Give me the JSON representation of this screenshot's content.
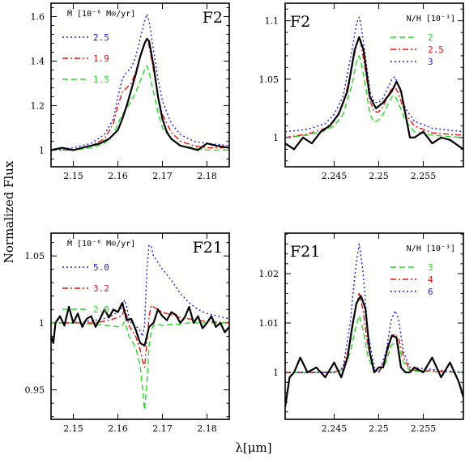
{
  "figure": {
    "ylabel": "Normalized Flux",
    "xlabel": "λ[μm]"
  },
  "chart_data": [
    {
      "type": "line",
      "title": "F2",
      "legend_title": "Ṁ [10⁻⁶ M⊙/yr]",
      "legend_position": "top-left",
      "xlim": [
        2.145,
        2.185
      ],
      "ylim": [
        0.925,
        1.66
      ],
      "xticks": [
        2.15,
        2.16,
        2.17,
        2.18
      ],
      "yticks": [
        1,
        1.2,
        1.4,
        1.6
      ],
      "xtick_labels": [
        "2.15",
        "2.16",
        "2.17",
        "2.18"
      ],
      "ytick_labels": [
        "1",
        "1.2",
        "1.4",
        "1.6"
      ],
      "series": [
        {
          "name": "",
          "color": "#000000",
          "dash": "",
          "width": 2.2,
          "x": [
            2.145,
            2.1475,
            2.15,
            2.152,
            2.154,
            2.156,
            2.158,
            2.16,
            2.161,
            2.162,
            2.163,
            2.164,
            2.165,
            2.166,
            2.1665,
            2.167,
            2.168,
            2.169,
            2.17,
            2.171,
            2.172,
            2.174,
            2.176,
            2.178,
            2.18,
            2.182,
            2.185
          ],
          "y": [
            1.0,
            1.01,
            1.0,
            1.01,
            1.02,
            1.03,
            1.05,
            1.09,
            1.14,
            1.2,
            1.27,
            1.34,
            1.42,
            1.48,
            1.5,
            1.49,
            1.38,
            1.24,
            1.14,
            1.08,
            1.05,
            1.02,
            1.01,
            1.0,
            1.03,
            1.02,
            1.01
          ]
        },
        {
          "name": "2.5",
          "color": "#1a1aff",
          "dash": "2,3",
          "width": 1.4,
          "x": [
            2.145,
            2.15,
            2.154,
            2.157,
            2.159,
            2.16,
            2.161,
            2.162,
            2.163,
            2.164,
            2.165,
            2.166,
            2.1665,
            2.167,
            2.168,
            2.169,
            2.17,
            2.172,
            2.174,
            2.177,
            2.18,
            2.185
          ],
          "y": [
            1.0,
            1.01,
            1.03,
            1.07,
            1.14,
            1.24,
            1.32,
            1.35,
            1.37,
            1.42,
            1.5,
            1.58,
            1.61,
            1.58,
            1.45,
            1.32,
            1.22,
            1.12,
            1.07,
            1.04,
            1.03,
            1.02
          ]
        },
        {
          "name": "1.9",
          "color": "#ee1111",
          "dash": "7,3,2,3",
          "width": 1.4,
          "x": [
            2.145,
            2.15,
            2.154,
            2.157,
            2.159,
            2.16,
            2.161,
            2.162,
            2.163,
            2.164,
            2.165,
            2.166,
            2.1665,
            2.167,
            2.168,
            2.169,
            2.17,
            2.172,
            2.174,
            2.177,
            2.18,
            2.185
          ],
          "y": [
            1.0,
            1.0,
            1.02,
            1.05,
            1.12,
            1.2,
            1.26,
            1.28,
            1.3,
            1.35,
            1.42,
            1.48,
            1.5,
            1.47,
            1.36,
            1.24,
            1.16,
            1.08,
            1.04,
            1.02,
            1.01,
            1.01
          ]
        },
        {
          "name": "1.5",
          "color": "#22dd22",
          "dash": "7,4",
          "width": 1.4,
          "x": [
            2.145,
            2.15,
            2.154,
            2.157,
            2.159,
            2.16,
            2.161,
            2.162,
            2.163,
            2.164,
            2.165,
            2.166,
            2.1665,
            2.167,
            2.168,
            2.169,
            2.17,
            2.172,
            2.174,
            2.177,
            2.18,
            2.185
          ],
          "y": [
            1.0,
            1.0,
            1.01,
            1.03,
            1.07,
            1.12,
            1.16,
            1.19,
            1.22,
            1.26,
            1.31,
            1.36,
            1.38,
            1.35,
            1.26,
            1.17,
            1.1,
            1.05,
            1.02,
            1.01,
            1.0,
            1.0
          ]
        }
      ]
    },
    {
      "type": "line",
      "title": "F2",
      "legend_title": "N/H [10⁻³]",
      "legend_position": "top-right",
      "xlim": [
        2.2395,
        2.2595
      ],
      "ylim": [
        0.975,
        1.115
      ],
      "xticks": [
        2.245,
        2.25,
        2.255
      ],
      "yticks": [
        1,
        1.05,
        1.1
      ],
      "xtick_labels": [
        "2.245",
        "2.25",
        "2.255"
      ],
      "ytick_labels": [
        "1",
        "1.05",
        "1.1"
      ],
      "series": [
        {
          "name": "",
          "color": "#000000",
          "dash": "",
          "width": 2.2,
          "x": [
            2.2395,
            2.2405,
            2.2415,
            2.2425,
            2.2435,
            2.2445,
            2.2455,
            2.2465,
            2.2473,
            2.2478,
            2.2483,
            2.249,
            2.2497,
            2.2505,
            2.2515,
            2.252,
            2.2525,
            2.253,
            2.2535,
            2.254,
            2.255,
            2.256,
            2.257,
            2.258,
            2.2595
          ],
          "y": [
            0.995,
            0.99,
            1.0,
            0.995,
            1.005,
            1.01,
            1.02,
            1.04,
            1.075,
            1.086,
            1.075,
            1.035,
            1.025,
            1.03,
            1.04,
            1.048,
            1.04,
            1.02,
            1.0,
            1.0,
            1.005,
            0.995,
            1.0,
            0.998,
            0.99
          ]
        },
        {
          "name": "2",
          "color": "#22dd22",
          "dash": "7,4",
          "width": 1.4,
          "x": [
            2.2395,
            2.242,
            2.244,
            2.245,
            2.246,
            2.247,
            2.2475,
            2.2478,
            2.248,
            2.2485,
            2.249,
            2.2495,
            2.25,
            2.2505,
            2.251,
            2.2515,
            2.2518,
            2.2522,
            2.253,
            2.254,
            2.256,
            2.2595
          ],
          "y": [
            1.0,
            1.002,
            1.006,
            1.01,
            1.02,
            1.045,
            1.065,
            1.07,
            1.065,
            1.045,
            1.02,
            1.013,
            1.015,
            1.02,
            1.028,
            1.035,
            1.036,
            1.03,
            1.014,
            1.005,
            1.002,
            1.0
          ]
        },
        {
          "name": "2.5",
          "color": "#ee1111",
          "dash": "7,3,2,3",
          "width": 1.4,
          "x": [
            2.2395,
            2.242,
            2.244,
            2.245,
            2.246,
            2.247,
            2.2475,
            2.2478,
            2.248,
            2.2485,
            2.249,
            2.2495,
            2.25,
            2.2505,
            2.251,
            2.2515,
            2.2518,
            2.2522,
            2.253,
            2.254,
            2.256,
            2.2595
          ],
          "y": [
            1.0,
            1.003,
            1.008,
            1.014,
            1.028,
            1.06,
            1.08,
            1.086,
            1.08,
            1.058,
            1.032,
            1.022,
            1.022,
            1.027,
            1.035,
            1.043,
            1.044,
            1.038,
            1.02,
            1.01,
            1.004,
            1.002
          ]
        },
        {
          "name": "3",
          "color": "#1a1aff",
          "dash": "2,3",
          "width": 1.4,
          "x": [
            2.2395,
            2.242,
            2.244,
            2.245,
            2.246,
            2.247,
            2.2475,
            2.2478,
            2.248,
            2.2485,
            2.249,
            2.2495,
            2.25,
            2.2505,
            2.251,
            2.2515,
            2.2518,
            2.2522,
            2.253,
            2.254,
            2.256,
            2.2595
          ],
          "y": [
            1.005,
            1.007,
            1.012,
            1.02,
            1.035,
            1.075,
            1.097,
            1.103,
            1.097,
            1.07,
            1.04,
            1.03,
            1.03,
            1.034,
            1.042,
            1.05,
            1.052,
            1.045,
            1.025,
            1.014,
            1.008,
            1.005
          ]
        }
      ]
    },
    {
      "type": "line",
      "title": "F21",
      "legend_title": "Ṁ [10⁻⁶ M⊙/yr]",
      "legend_position": "top-left",
      "xlim": [
        2.145,
        2.185
      ],
      "ylim": [
        0.928,
        1.067
      ],
      "xticks": [
        2.15,
        2.16,
        2.17,
        2.18
      ],
      "yticks": [
        0.95,
        1,
        1.05
      ],
      "xtick_labels": [
        "2.15",
        "2.16",
        "2.17",
        "2.18"
      ],
      "ytick_labels": [
        "0.95",
        "1",
        "1.05"
      ],
      "series": [
        {
          "name": "",
          "color": "#000000",
          "dash": "",
          "width": 2.2,
          "x": [
            2.145,
            2.1455,
            2.146,
            2.147,
            2.148,
            2.149,
            2.15,
            2.151,
            2.152,
            2.153,
            2.154,
            2.155,
            2.156,
            2.157,
            2.158,
            2.159,
            2.16,
            2.161,
            2.162,
            2.163,
            2.164,
            2.165,
            2.166,
            2.167,
            2.168,
            2.169,
            2.17,
            2.171,
            2.172,
            2.173,
            2.174,
            2.175,
            2.176,
            2.177,
            2.178,
            2.179,
            2.18,
            2.181,
            2.182,
            2.183,
            2.184,
            2.185
          ],
          "y": [
            0.99,
            0.985,
            1.0,
            1.005,
            0.998,
            1.012,
            1.0,
            1.007,
            0.997,
            1.003,
            1.005,
            0.997,
            1.003,
            1.01,
            1.004,
            1.01,
            1.008,
            1.015,
            1.002,
            1.003,
            0.995,
            0.985,
            0.983,
            0.997,
            1.0,
            1.01,
            1.005,
            1.002,
            1.008,
            1.006,
            1.0,
            1.004,
            1.012,
            1.0,
            1.005,
            0.996,
            1.0,
            1.005,
            0.997,
            1.0,
            0.993,
            0.997
          ]
        },
        {
          "name": "5.0",
          "color": "#1a1aff",
          "dash": "2,3",
          "width": 1.4,
          "x": [
            2.145,
            2.15,
            2.155,
            2.158,
            2.16,
            2.161,
            2.1615,
            2.162,
            2.1625,
            2.163,
            2.164,
            2.165,
            2.1655,
            2.166,
            2.1665,
            2.167,
            2.1675,
            2.168,
            2.169,
            2.17,
            2.172,
            2.174,
            2.176,
            2.178,
            2.18,
            2.185
          ],
          "y": [
            1.0,
            1.0,
            1.002,
            1.004,
            1.008,
            1.012,
            1.017,
            1.012,
            1.003,
            1.0,
            0.998,
            0.994,
            0.99,
            0.998,
            1.04,
            1.058,
            1.057,
            1.05,
            1.045,
            1.04,
            1.032,
            1.022,
            1.015,
            1.01,
            1.007,
            1.003
          ]
        },
        {
          "name": "3.2",
          "color": "#ee1111",
          "dash": "7,3,2,3",
          "width": 1.4,
          "x": [
            2.145,
            2.15,
            2.155,
            2.158,
            2.16,
            2.161,
            2.1615,
            2.162,
            2.1625,
            2.163,
            2.164,
            2.165,
            2.1655,
            2.166,
            2.1665,
            2.167,
            2.1675,
            2.168,
            2.169,
            2.17,
            2.172,
            2.174,
            2.176,
            2.178,
            2.18,
            2.185
          ],
          "y": [
            1.0,
            1.0,
            1.0,
            1.002,
            1.004,
            1.006,
            1.011,
            1.005,
            0.998,
            0.995,
            0.99,
            0.98,
            0.972,
            0.967,
            0.985,
            1.005,
            1.013,
            1.012,
            1.01,
            1.008,
            1.006,
            1.004,
            1.003,
            1.002,
            1.001,
            1.0
          ]
        },
        {
          "name": "2.0",
          "color": "#22dd22",
          "dash": "7,4",
          "width": 1.4,
          "x": [
            2.145,
            2.15,
            2.155,
            2.158,
            2.16,
            2.161,
            2.1615,
            2.162,
            2.1625,
            2.163,
            2.164,
            2.165,
            2.1655,
            2.166,
            2.1665,
            2.167,
            2.1675,
            2.168,
            2.169,
            2.17,
            2.172,
            2.174,
            2.176,
            2.178,
            2.18,
            2.185
          ],
          "y": [
            1.0,
            1.0,
            0.999,
            0.998,
            0.997,
            0.998,
            1.001,
            0.996,
            0.99,
            0.987,
            0.982,
            0.968,
            0.952,
            0.935,
            0.955,
            0.982,
            0.995,
            0.998,
            0.999,
            0.998,
            0.999,
            0.999,
            1.0,
            1.0,
            1.0,
            1.0
          ]
        }
      ]
    },
    {
      "type": "line",
      "title": "F21",
      "legend_title": "N/H [10⁻³]",
      "legend_position": "top-right",
      "xlim": [
        2.2395,
        2.2595
      ],
      "ylim": [
        0.9905,
        1.0282
      ],
      "xticks": [
        2.245,
        2.25,
        2.255
      ],
      "yticks": [
        1,
        1.01,
        1.02
      ],
      "xtick_labels": [
        "2.245",
        "2.25",
        "2.255"
      ],
      "ytick_labels": [
        "1",
        "1.01",
        "1.02"
      ],
      "series": [
        {
          "name": "",
          "color": "#000000",
          "dash": "",
          "width": 2.2,
          "x": [
            2.2395,
            2.24,
            2.2405,
            2.2412,
            2.242,
            2.243,
            2.244,
            2.245,
            2.2458,
            2.2465,
            2.247,
            2.2475,
            2.248,
            2.2485,
            2.249,
            2.2495,
            2.25,
            2.2505,
            2.251,
            2.2515,
            2.252,
            2.2525,
            2.253,
            2.2535,
            2.254,
            2.255,
            2.256,
            2.257,
            2.258,
            2.259,
            2.2595
          ],
          "y": [
            0.993,
            0.999,
            1.0,
            1.003,
            1.0,
            1.001,
            0.999,
            1.002,
            0.999,
            1.003,
            1.009,
            1.014,
            1.0155,
            1.013,
            1.004,
            1.0,
            1.001,
            1.001,
            1.005,
            1.0075,
            1.007,
            1.001,
            1.0,
            1.0,
            1.001,
            1.0,
            1.003,
            0.999,
            1.002,
            0.998,
            0.995
          ]
        },
        {
          "name": "3",
          "color": "#22dd22",
          "dash": "7,4",
          "width": 1.4,
          "x": [
            2.2395,
            2.245,
            2.246,
            2.2468,
            2.2474,
            2.2478,
            2.2482,
            2.2488,
            2.2495,
            2.25,
            2.2508,
            2.2514,
            2.2518,
            2.2522,
            2.2528,
            2.2535,
            2.2595
          ],
          "y": [
            1.0,
            1.0,
            1.0005,
            1.004,
            1.009,
            1.0115,
            1.009,
            1.003,
            1.0003,
            1.0,
            1.002,
            1.0055,
            1.006,
            1.0055,
            1.002,
            1.0003,
            1.0
          ]
        },
        {
          "name": "4",
          "color": "#ee1111",
          "dash": "7,3,2,3",
          "width": 1.4,
          "x": [
            2.2395,
            2.245,
            2.246,
            2.2468,
            2.2474,
            2.2478,
            2.2482,
            2.2488,
            2.2495,
            2.25,
            2.2508,
            2.2514,
            2.2518,
            2.2522,
            2.2528,
            2.2535,
            2.2595
          ],
          "y": [
            1.0,
            1.0,
            1.0008,
            1.006,
            1.013,
            1.016,
            1.013,
            1.005,
            1.0005,
            1.0,
            1.003,
            1.007,
            1.0078,
            1.007,
            1.003,
            1.0005,
            1.0
          ]
        },
        {
          "name": "6",
          "color": "#1a1aff",
          "dash": "2,3",
          "width": 1.4,
          "x": [
            2.2395,
            2.245,
            2.246,
            2.2468,
            2.2474,
            2.2478,
            2.2482,
            2.2488,
            2.2495,
            2.25,
            2.2508,
            2.2514,
            2.2518,
            2.2522,
            2.2528,
            2.2535,
            2.2595
          ],
          "y": [
            1.0,
            1.0,
            1.001,
            1.01,
            1.021,
            1.026,
            1.021,
            1.008,
            1.001,
            1.0,
            1.004,
            1.0105,
            1.0125,
            1.011,
            1.004,
            1.001,
            1.0
          ]
        }
      ]
    }
  ]
}
